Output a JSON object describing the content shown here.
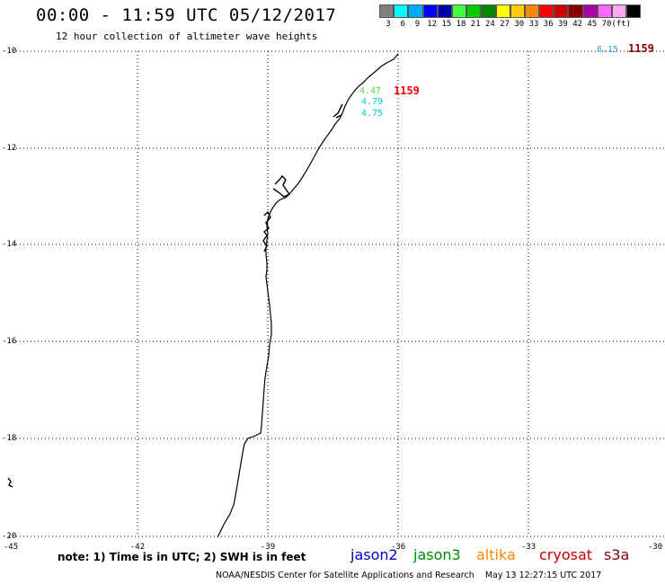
{
  "header": {
    "title": "00:00 - 11:59 UTC 05/12/2017",
    "subtitle": "12 hour collection of altimeter wave heights"
  },
  "color_scale": {
    "colors": [
      "#808080",
      "#00ffff",
      "#00aaff",
      "#0000ff",
      "#0000aa",
      "#44ff44",
      "#00cc00",
      "#008800",
      "#ffff00",
      "#ffcc00",
      "#ff8800",
      "#ff0000",
      "#cc0000",
      "#880000",
      "#aa00aa",
      "#ff66ff",
      "#ffaaee",
      "#000000"
    ],
    "labels": [
      "3",
      "6",
      "9",
      "12",
      "15",
      "18",
      "21",
      "24",
      "27",
      "30",
      "33",
      "36",
      "39",
      "42",
      "45",
      "70",
      "(ft)"
    ]
  },
  "map": {
    "lat_labels": [
      "-10",
      "-12",
      "-14",
      "-16",
      "-18",
      "-20"
    ],
    "lon_labels": [
      "-45",
      "-42",
      "-39",
      "-36",
      "-33",
      "-30"
    ],
    "wave_readings": [
      {
        "value": "6.15",
        "color": "#3aa0e0"
      },
      {
        "value": "4.47",
        "color": "#44dd44"
      },
      {
        "value": "4.79",
        "color": "#00cccc"
      },
      {
        "value": "4.75",
        "color": "#00cccc"
      }
    ],
    "pass_times": [
      {
        "value": "1159",
        "color": "#880000"
      },
      {
        "value": "1159",
        "color": "#ff0000"
      }
    ]
  },
  "footer": {
    "note": "note: 1) Time is in UTC; 2) SWH is in feet",
    "satellites": [
      {
        "name": "jason2",
        "color": "#0000cc"
      },
      {
        "name": "jason3",
        "color": "#008800"
      },
      {
        "name": "altika",
        "color": "#ff8800"
      },
      {
        "name": "cryosat",
        "color": "#cc0000"
      },
      {
        "name": "s3a",
        "color": "#880000"
      }
    ],
    "credit": "NOAA/NESDIS Center for Satellite Applications and Research",
    "timestamp": "May 13 12:27:15 UTC 2017"
  }
}
